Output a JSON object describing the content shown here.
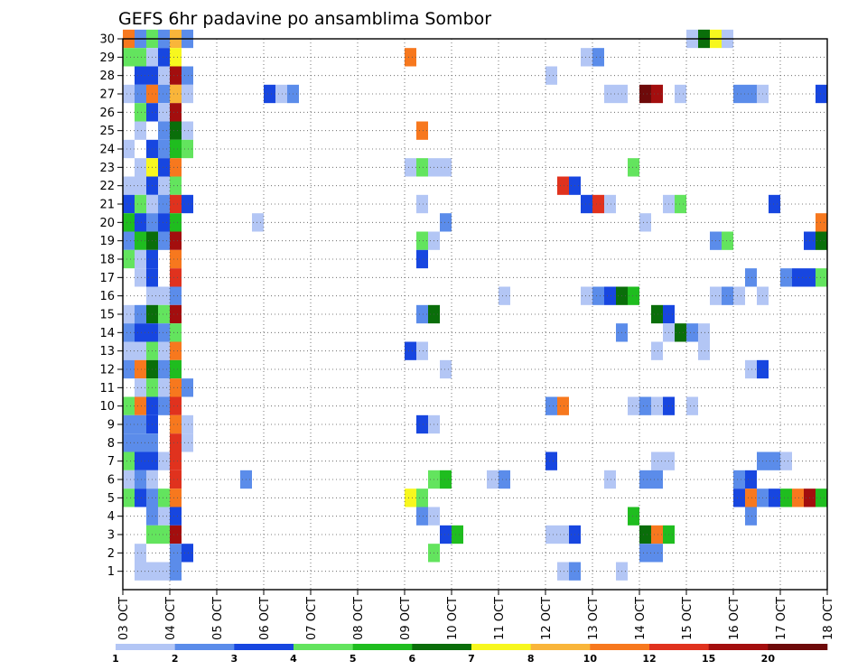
{
  "chart_data": {
    "type": "heatmap",
    "title": "GEFS 6hr padavine po ansamblima Sombor",
    "x": {
      "start_day": 3,
      "end_day": 18,
      "step_hours": 6,
      "tick_labels": [
        "03 OCT",
        "04 OCT",
        "05 OCT",
        "06 OCT",
        "07 OCT",
        "08 OCT",
        "09 OCT",
        "10 OCT",
        "11 OCT",
        "12 OCT",
        "13 OCT",
        "14 OCT",
        "15 OCT",
        "16 OCT",
        "17 OCT",
        "18 OCT"
      ]
    },
    "y": {
      "min": 0,
      "max": 30,
      "tick_labels": [
        "1",
        "2",
        "3",
        "4",
        "5",
        "6",
        "7",
        "8",
        "9",
        "10",
        "11",
        "12",
        "13",
        "14",
        "15",
        "16",
        "17",
        "18",
        "19",
        "20",
        "21",
        "22",
        "23",
        "24",
        "25",
        "26",
        "27",
        "28",
        "29",
        "30"
      ]
    },
    "legend": {
      "placement": "bottom",
      "levels": [
        1,
        2,
        3,
        4,
        5,
        6,
        7,
        8,
        10,
        12,
        15,
        20
      ],
      "labels": [
        "1",
        "2",
        "3",
        "4",
        "5",
        "6",
        "7",
        "8",
        "10",
        "12",
        "15",
        "20"
      ],
      "colors": [
        "#b3c6f5",
        "#5b8cea",
        "#1746e0",
        "#63e45e",
        "#1fbd1f",
        "#0a6e0a",
        "#f7f71e",
        "#f9b53a",
        "#f7781e",
        "#e0321e",
        "#a30e0e",
        "#6e0a0a"
      ]
    },
    "grid": "dotted",
    "values": [
      {
        "m": 30,
        "d": 3.0,
        "c": 9
      },
      {
        "m": 30,
        "d": 3.25,
        "c": 2
      },
      {
        "m": 30,
        "d": 3.5,
        "c": 4
      },
      {
        "m": 30,
        "d": 3.75,
        "c": 2
      },
      {
        "m": 30,
        "d": 4.0,
        "c": 8
      },
      {
        "m": 30,
        "d": 4.25,
        "c": 2
      },
      {
        "m": 30,
        "d": 15.0,
        "c": 1
      },
      {
        "m": 30,
        "d": 15.25,
        "c": 6
      },
      {
        "m": 30,
        "d": 15.5,
        "c": 7
      },
      {
        "m": 30,
        "d": 15.75,
        "c": 1
      },
      {
        "m": 29,
        "d": 3.0,
        "c": 4
      },
      {
        "m": 29,
        "d": 3.25,
        "c": 4
      },
      {
        "m": 29,
        "d": 3.5,
        "c": 1
      },
      {
        "m": 29,
        "d": 3.75,
        "c": 3
      },
      {
        "m": 29,
        "d": 4.0,
        "c": 7
      },
      {
        "m": 29,
        "d": 9.0,
        "c": 9
      },
      {
        "m": 29,
        "d": 12.75,
        "c": 1
      },
      {
        "m": 29,
        "d": 13.0,
        "c": 2
      },
      {
        "m": 28,
        "d": 3.25,
        "c": 3
      },
      {
        "m": 28,
        "d": 3.5,
        "c": 3
      },
      {
        "m": 28,
        "d": 3.75,
        "c": 1
      },
      {
        "m": 28,
        "d": 4.0,
        "c": 11
      },
      {
        "m": 28,
        "d": 4.25,
        "c": 2
      },
      {
        "m": 28,
        "d": 12.0,
        "c": 1
      },
      {
        "m": 27,
        "d": 3.0,
        "c": 1
      },
      {
        "m": 27,
        "d": 3.25,
        "c": 2
      },
      {
        "m": 27,
        "d": 3.5,
        "c": 9
      },
      {
        "m": 27,
        "d": 3.75,
        "c": 2
      },
      {
        "m": 27,
        "d": 4.0,
        "c": 8
      },
      {
        "m": 27,
        "d": 4.25,
        "c": 1
      },
      {
        "m": 27,
        "d": 6.0,
        "c": 3
      },
      {
        "m": 27,
        "d": 6.25,
        "c": 1
      },
      {
        "m": 27,
        "d": 6.5,
        "c": 2
      },
      {
        "m": 27,
        "d": 13.25,
        "c": 1
      },
      {
        "m": 27,
        "d": 13.5,
        "c": 1
      },
      {
        "m": 27,
        "d": 14.0,
        "c": 12
      },
      {
        "m": 27,
        "d": 14.25,
        "c": 11
      },
      {
        "m": 27,
        "d": 14.75,
        "c": 1
      },
      {
        "m": 27,
        "d": 16.0,
        "c": 2
      },
      {
        "m": 27,
        "d": 16.25,
        "c": 2
      },
      {
        "m": 27,
        "d": 16.5,
        "c": 1
      },
      {
        "m": 27,
        "d": 17.75,
        "c": 3
      },
      {
        "m": 26,
        "d": 3.25,
        "c": 4
      },
      {
        "m": 26,
        "d": 3.5,
        "c": 3
      },
      {
        "m": 26,
        "d": 3.75,
        "c": 1
      },
      {
        "m": 26,
        "d": 4.0,
        "c": 11
      },
      {
        "m": 25,
        "d": 3.25,
        "c": 1
      },
      {
        "m": 25,
        "d": 3.75,
        "c": 2
      },
      {
        "m": 25,
        "d": 4.0,
        "c": 6
      },
      {
        "m": 25,
        "d": 4.25,
        "c": 1
      },
      {
        "m": 25,
        "d": 9.25,
        "c": 9
      },
      {
        "m": 24,
        "d": 3.0,
        "c": 1
      },
      {
        "m": 24,
        "d": 3.5,
        "c": 3
      },
      {
        "m": 24,
        "d": 3.75,
        "c": 2
      },
      {
        "m": 24,
        "d": 4.0,
        "c": 5
      },
      {
        "m": 24,
        "d": 4.25,
        "c": 4
      },
      {
        "m": 23,
        "d": 3.25,
        "c": 1
      },
      {
        "m": 23,
        "d": 3.5,
        "c": 7
      },
      {
        "m": 23,
        "d": 3.75,
        "c": 3
      },
      {
        "m": 23,
        "d": 4.0,
        "c": 9
      },
      {
        "m": 23,
        "d": 9.0,
        "c": 1
      },
      {
        "m": 23,
        "d": 9.25,
        "c": 4
      },
      {
        "m": 23,
        "d": 9.5,
        "c": 1
      },
      {
        "m": 23,
        "d": 9.75,
        "c": 1
      },
      {
        "m": 23,
        "d": 13.75,
        "c": 4
      },
      {
        "m": 22,
        "d": 3.0,
        "c": 1
      },
      {
        "m": 22,
        "d": 3.25,
        "c": 1
      },
      {
        "m": 22,
        "d": 3.5,
        "c": 3
      },
      {
        "m": 22,
        "d": 3.75,
        "c": 1
      },
      {
        "m": 22,
        "d": 4.0,
        "c": 4
      },
      {
        "m": 22,
        "d": 12.25,
        "c": 10
      },
      {
        "m": 22,
        "d": 12.5,
        "c": 3
      },
      {
        "m": 21,
        "d": 3.0,
        "c": 3
      },
      {
        "m": 21,
        "d": 3.25,
        "c": 4
      },
      {
        "m": 21,
        "d": 3.5,
        "c": 1
      },
      {
        "m": 21,
        "d": 3.75,
        "c": 2
      },
      {
        "m": 21,
        "d": 4.0,
        "c": 10
      },
      {
        "m": 21,
        "d": 4.25,
        "c": 3
      },
      {
        "m": 21,
        "d": 9.25,
        "c": 1
      },
      {
        "m": 21,
        "d": 12.75,
        "c": 3
      },
      {
        "m": 21,
        "d": 13.0,
        "c": 10
      },
      {
        "m": 21,
        "d": 13.25,
        "c": 1
      },
      {
        "m": 21,
        "d": 14.5,
        "c": 1
      },
      {
        "m": 21,
        "d": 14.75,
        "c": 4
      },
      {
        "m": 21,
        "d": 16.75,
        "c": 3
      },
      {
        "m": 20,
        "d": 3.0,
        "c": 5
      },
      {
        "m": 20,
        "d": 3.25,
        "c": 3
      },
      {
        "m": 20,
        "d": 3.5,
        "c": 2
      },
      {
        "m": 20,
        "d": 3.75,
        "c": 3
      },
      {
        "m": 20,
        "d": 4.0,
        "c": 5
      },
      {
        "m": 20,
        "d": 5.75,
        "c": 1
      },
      {
        "m": 20,
        "d": 9.75,
        "c": 2
      },
      {
        "m": 20,
        "d": 14.0,
        "c": 1
      },
      {
        "m": 20,
        "d": 17.75,
        "c": 9
      },
      {
        "m": 19,
        "d": 3.0,
        "c": 2
      },
      {
        "m": 19,
        "d": 3.25,
        "c": 5
      },
      {
        "m": 19,
        "d": 3.5,
        "c": 6
      },
      {
        "m": 19,
        "d": 3.75,
        "c": 2
      },
      {
        "m": 19,
        "d": 4.0,
        "c": 11
      },
      {
        "m": 19,
        "d": 9.25,
        "c": 4
      },
      {
        "m": 19,
        "d": 9.5,
        "c": 1
      },
      {
        "m": 19,
        "d": 15.5,
        "c": 2
      },
      {
        "m": 19,
        "d": 15.75,
        "c": 4
      },
      {
        "m": 19,
        "d": 17.5,
        "c": 3
      },
      {
        "m": 19,
        "d": 17.75,
        "c": 6
      },
      {
        "m": 18,
        "d": 3.0,
        "c": 4
      },
      {
        "m": 18,
        "d": 3.25,
        "c": 1
      },
      {
        "m": 18,
        "d": 3.5,
        "c": 3
      },
      {
        "m": 18,
        "d": 4.0,
        "c": 9
      },
      {
        "m": 18,
        "d": 9.25,
        "c": 3
      },
      {
        "m": 17,
        "d": 3.25,
        "c": 1
      },
      {
        "m": 17,
        "d": 3.5,
        "c": 3
      },
      {
        "m": 17,
        "d": 4.0,
        "c": 10
      },
      {
        "m": 17,
        "d": 16.25,
        "c": 2
      },
      {
        "m": 17,
        "d": 17.0,
        "c": 2
      },
      {
        "m": 17,
        "d": 17.25,
        "c": 3
      },
      {
        "m": 17,
        "d": 17.5,
        "c": 3
      },
      {
        "m": 17,
        "d": 17.75,
        "c": 4
      },
      {
        "m": 16,
        "d": 3.5,
        "c": 1
      },
      {
        "m": 16,
        "d": 3.75,
        "c": 1
      },
      {
        "m": 16,
        "d": 4.0,
        "c": 2
      },
      {
        "m": 16,
        "d": 11.0,
        "c": 1
      },
      {
        "m": 16,
        "d": 12.75,
        "c": 1
      },
      {
        "m": 16,
        "d": 13.0,
        "c": 2
      },
      {
        "m": 16,
        "d": 13.25,
        "c": 3
      },
      {
        "m": 16,
        "d": 13.5,
        "c": 6
      },
      {
        "m": 16,
        "d": 13.75,
        "c": 5
      },
      {
        "m": 16,
        "d": 15.5,
        "c": 1
      },
      {
        "m": 16,
        "d": 15.75,
        "c": 2
      },
      {
        "m": 16,
        "d": 16.0,
        "c": 1
      },
      {
        "m": 16,
        "d": 16.5,
        "c": 1
      },
      {
        "m": 15,
        "d": 3.0,
        "c": 1
      },
      {
        "m": 15,
        "d": 3.25,
        "c": 2
      },
      {
        "m": 15,
        "d": 3.5,
        "c": 6
      },
      {
        "m": 15,
        "d": 3.75,
        "c": 4
      },
      {
        "m": 15,
        "d": 4.0,
        "c": 11
      },
      {
        "m": 15,
        "d": 9.25,
        "c": 2
      },
      {
        "m": 15,
        "d": 9.5,
        "c": 6
      },
      {
        "m": 15,
        "d": 14.25,
        "c": 6
      },
      {
        "m": 15,
        "d": 14.5,
        "c": 3
      },
      {
        "m": 14,
        "d": 3.0,
        "c": 2
      },
      {
        "m": 14,
        "d": 3.25,
        "c": 3
      },
      {
        "m": 14,
        "d": 3.5,
        "c": 3
      },
      {
        "m": 14,
        "d": 3.75,
        "c": 2
      },
      {
        "m": 14,
        "d": 4.0,
        "c": 4
      },
      {
        "m": 14,
        "d": 13.5,
        "c": 2
      },
      {
        "m": 14,
        "d": 14.5,
        "c": 1
      },
      {
        "m": 14,
        "d": 14.75,
        "c": 6
      },
      {
        "m": 14,
        "d": 15.0,
        "c": 2
      },
      {
        "m": 14,
        "d": 15.25,
        "c": 1
      },
      {
        "m": 13,
        "d": 3.0,
        "c": 1
      },
      {
        "m": 13,
        "d": 3.25,
        "c": 1
      },
      {
        "m": 13,
        "d": 3.5,
        "c": 4
      },
      {
        "m": 13,
        "d": 3.75,
        "c": 1
      },
      {
        "m": 13,
        "d": 4.0,
        "c": 9
      },
      {
        "m": 13,
        "d": 9.0,
        "c": 3
      },
      {
        "m": 13,
        "d": 9.25,
        "c": 1
      },
      {
        "m": 13,
        "d": 14.25,
        "c": 1
      },
      {
        "m": 13,
        "d": 15.25,
        "c": 1
      },
      {
        "m": 12,
        "d": 3.0,
        "c": 2
      },
      {
        "m": 12,
        "d": 3.25,
        "c": 9
      },
      {
        "m": 12,
        "d": 3.5,
        "c": 6
      },
      {
        "m": 12,
        "d": 3.75,
        "c": 2
      },
      {
        "m": 12,
        "d": 4.0,
        "c": 5
      },
      {
        "m": 12,
        "d": 9.75,
        "c": 1
      },
      {
        "m": 12,
        "d": 16.25,
        "c": 1
      },
      {
        "m": 12,
        "d": 16.5,
        "c": 3
      },
      {
        "m": 11,
        "d": 3.25,
        "c": 1
      },
      {
        "m": 11,
        "d": 3.5,
        "c": 4
      },
      {
        "m": 11,
        "d": 3.75,
        "c": 1
      },
      {
        "m": 11,
        "d": 4.0,
        "c": 9
      },
      {
        "m": 11,
        "d": 4.25,
        "c": 2
      },
      {
        "m": 10,
        "d": 3.0,
        "c": 4
      },
      {
        "m": 10,
        "d": 3.25,
        "c": 9
      },
      {
        "m": 10,
        "d": 3.5,
        "c": 3
      },
      {
        "m": 10,
        "d": 3.75,
        "c": 2
      },
      {
        "m": 10,
        "d": 4.0,
        "c": 10
      },
      {
        "m": 10,
        "d": 12.0,
        "c": 2
      },
      {
        "m": 10,
        "d": 12.25,
        "c": 9
      },
      {
        "m": 10,
        "d": 13.75,
        "c": 1
      },
      {
        "m": 10,
        "d": 14.0,
        "c": 2
      },
      {
        "m": 10,
        "d": 14.25,
        "c": 1
      },
      {
        "m": 10,
        "d": 14.5,
        "c": 3
      },
      {
        "m": 10,
        "d": 15.0,
        "c": 1
      },
      {
        "m": 9,
        "d": 3.0,
        "c": 2
      },
      {
        "m": 9,
        "d": 3.25,
        "c": 2
      },
      {
        "m": 9,
        "d": 3.5,
        "c": 3
      },
      {
        "m": 9,
        "d": 4.0,
        "c": 9
      },
      {
        "m": 9,
        "d": 4.25,
        "c": 1
      },
      {
        "m": 9,
        "d": 9.25,
        "c": 3
      },
      {
        "m": 9,
        "d": 9.5,
        "c": 1
      },
      {
        "m": 8,
        "d": 3.0,
        "c": 2
      },
      {
        "m": 8,
        "d": 3.25,
        "c": 2
      },
      {
        "m": 8,
        "d": 3.5,
        "c": 2
      },
      {
        "m": 8,
        "d": 4.0,
        "c": 10
      },
      {
        "m": 8,
        "d": 4.25,
        "c": 1
      },
      {
        "m": 7,
        "d": 3.0,
        "c": 4
      },
      {
        "m": 7,
        "d": 3.25,
        "c": 3
      },
      {
        "m": 7,
        "d": 3.5,
        "c": 3
      },
      {
        "m": 7,
        "d": 3.75,
        "c": 1
      },
      {
        "m": 7,
        "d": 4.0,
        "c": 10
      },
      {
        "m": 7,
        "d": 12.0,
        "c": 3
      },
      {
        "m": 7,
        "d": 14.25,
        "c": 1
      },
      {
        "m": 7,
        "d": 14.5,
        "c": 1
      },
      {
        "m": 7,
        "d": 16.5,
        "c": 2
      },
      {
        "m": 7,
        "d": 16.75,
        "c": 2
      },
      {
        "m": 7,
        "d": 17.0,
        "c": 1
      },
      {
        "m": 6,
        "d": 3.0,
        "c": 1
      },
      {
        "m": 6,
        "d": 3.25,
        "c": 2
      },
      {
        "m": 6,
        "d": 3.5,
        "c": 1
      },
      {
        "m": 6,
        "d": 4.0,
        "c": 10
      },
      {
        "m": 6,
        "d": 5.5,
        "c": 2
      },
      {
        "m": 6,
        "d": 9.5,
        "c": 4
      },
      {
        "m": 6,
        "d": 9.75,
        "c": 5
      },
      {
        "m": 6,
        "d": 10.75,
        "c": 1
      },
      {
        "m": 6,
        "d": 11.0,
        "c": 2
      },
      {
        "m": 6,
        "d": 13.25,
        "c": 1
      },
      {
        "m": 6,
        "d": 14.0,
        "c": 2
      },
      {
        "m": 6,
        "d": 14.25,
        "c": 2
      },
      {
        "m": 6,
        "d": 16.0,
        "c": 2
      },
      {
        "m": 6,
        "d": 16.25,
        "c": 3
      },
      {
        "m": 5,
        "d": 3.0,
        "c": 4
      },
      {
        "m": 5,
        "d": 3.25,
        "c": 3
      },
      {
        "m": 5,
        "d": 3.5,
        "c": 2
      },
      {
        "m": 5,
        "d": 3.75,
        "c": 4
      },
      {
        "m": 5,
        "d": 4.0,
        "c": 9
      },
      {
        "m": 5,
        "d": 9.0,
        "c": 7
      },
      {
        "m": 5,
        "d": 9.25,
        "c": 4
      },
      {
        "m": 5,
        "d": 16.0,
        "c": 3
      },
      {
        "m": 5,
        "d": 16.25,
        "c": 9
      },
      {
        "m": 5,
        "d": 16.5,
        "c": 2
      },
      {
        "m": 5,
        "d": 16.75,
        "c": 3
      },
      {
        "m": 5,
        "d": 17.0,
        "c": 5
      },
      {
        "m": 5,
        "d": 17.25,
        "c": 9
      },
      {
        "m": 5,
        "d": 17.5,
        "c": 11
      },
      {
        "m": 5,
        "d": 17.75,
        "c": 5
      },
      {
        "m": 4,
        "d": 3.5,
        "c": 2
      },
      {
        "m": 4,
        "d": 3.75,
        "c": 1
      },
      {
        "m": 4,
        "d": 4.0,
        "c": 3
      },
      {
        "m": 4,
        "d": 9.25,
        "c": 2
      },
      {
        "m": 4,
        "d": 9.5,
        "c": 1
      },
      {
        "m": 4,
        "d": 13.75,
        "c": 5
      },
      {
        "m": 4,
        "d": 16.25,
        "c": 2
      },
      {
        "m": 3,
        "d": 3.5,
        "c": 4
      },
      {
        "m": 3,
        "d": 3.75,
        "c": 4
      },
      {
        "m": 3,
        "d": 4.0,
        "c": 11
      },
      {
        "m": 3,
        "d": 9.75,
        "c": 3
      },
      {
        "m": 3,
        "d": 10.0,
        "c": 5
      },
      {
        "m": 3,
        "d": 12.0,
        "c": 1
      },
      {
        "m": 3,
        "d": 12.25,
        "c": 1
      },
      {
        "m": 3,
        "d": 12.5,
        "c": 3
      },
      {
        "m": 3,
        "d": 14.0,
        "c": 6
      },
      {
        "m": 3,
        "d": 14.25,
        "c": 9
      },
      {
        "m": 3,
        "d": 14.5,
        "c": 5
      },
      {
        "m": 2,
        "d": 3.25,
        "c": 1
      },
      {
        "m": 2,
        "d": 4.0,
        "c": 2
      },
      {
        "m": 2,
        "d": 4.25,
        "c": 3
      },
      {
        "m": 2,
        "d": 9.5,
        "c": 4
      },
      {
        "m": 2,
        "d": 14.0,
        "c": 2
      },
      {
        "m": 2,
        "d": 14.25,
        "c": 2
      },
      {
        "m": 1,
        "d": 3.25,
        "c": 1
      },
      {
        "m": 1,
        "d": 3.5,
        "c": 1
      },
      {
        "m": 1,
        "d": 3.75,
        "c": 1
      },
      {
        "m": 1,
        "d": 4.0,
        "c": 2
      },
      {
        "m": 1,
        "d": 12.25,
        "c": 1
      },
      {
        "m": 1,
        "d": 12.5,
        "c": 2
      },
      {
        "m": 1,
        "d": 13.5,
        "c": 1
      }
    ]
  }
}
